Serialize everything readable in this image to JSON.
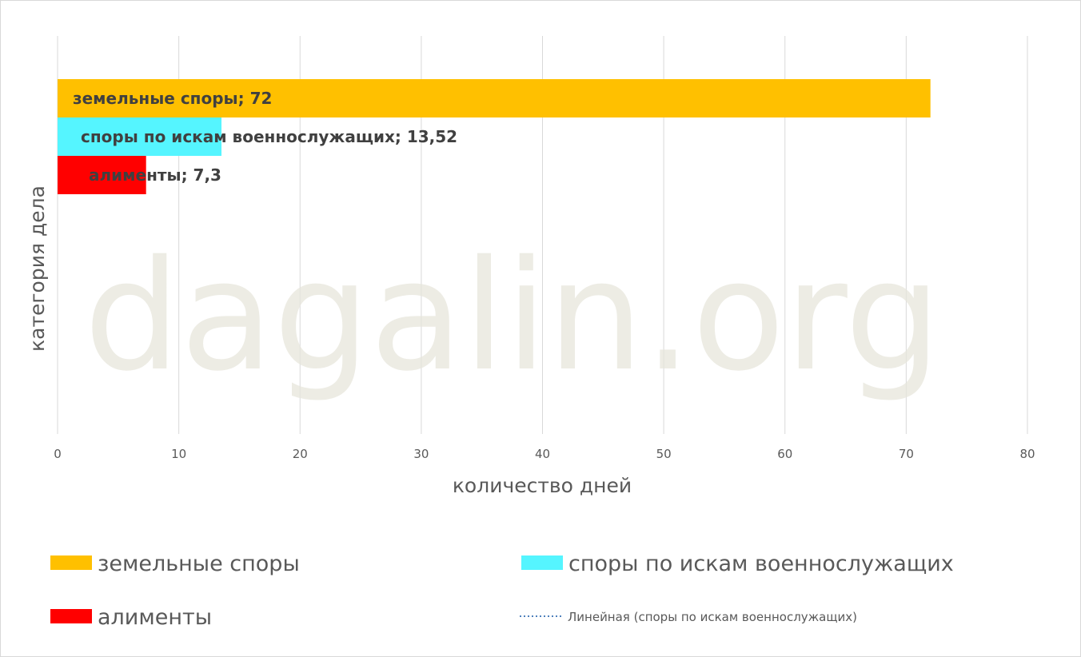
{
  "chart_data": {
    "type": "bar",
    "orientation": "horizontal",
    "series": [
      {
        "name": "земельные споры",
        "value": 72,
        "color": "#FFC000",
        "data_label": "земельные споры; 72"
      },
      {
        "name": "споры по искам военнослужащих",
        "value": 13.52,
        "color": "#55F5FF",
        "data_label": "споры по искам военнослужащих; 13,52"
      },
      {
        "name": "алименты",
        "value": 7.3,
        "color": "#FF0000",
        "data_label": "алименты; 7,3"
      }
    ],
    "xlim": [
      0,
      80
    ],
    "xticks": [
      0,
      10,
      20,
      30,
      40,
      50,
      60,
      70,
      80
    ],
    "xlabel": "количество дней",
    "ylabel": "категория дела",
    "grid": true,
    "legend_position": "bottom",
    "trendline_legend": {
      "label": "Линейная (споры по искам военнослужащих)",
      "color": "#4F81BD"
    }
  },
  "watermark": "dagalin.org"
}
